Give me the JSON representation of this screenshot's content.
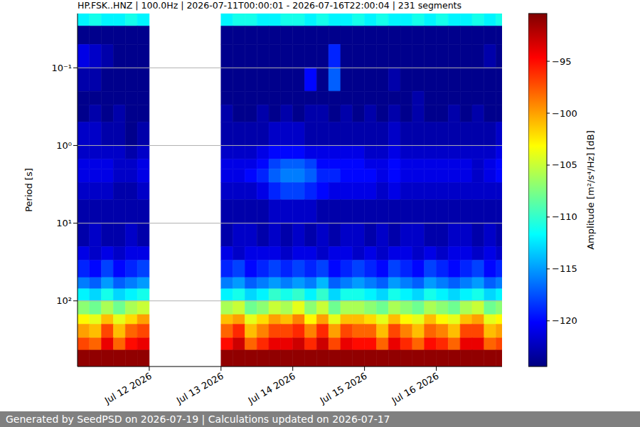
{
  "chart_data": {
    "type": "heatmap",
    "title": "HP.FSK..HNZ | 100.0Hz | 2026-07-11T00:00:01 - 2026-07-16T22:00:04 | 231 segments",
    "ylabel": "Period [s]",
    "log": "y",
    "grid": true,
    "xlim": [
      "2026-07-11T00:00:01",
      "2026-07-16T22:00:04"
    ],
    "xticks": [
      {
        "value": "2026-07-12",
        "label": "Jul 12 2026"
      },
      {
        "value": "2026-07-13",
        "label": "Jul 13 2026"
      },
      {
        "value": "2026-07-14",
        "label": "Jul 14 2026"
      },
      {
        "value": "2026-07-15",
        "label": "Jul 15 2026"
      },
      {
        "value": "2026-07-16",
        "label": "Jul 16 2026"
      }
    ],
    "ylim": [
      0.02,
      700
    ],
    "yticks": [
      {
        "value": 0.1,
        "label": "10⁻¹"
      },
      {
        "value": 1,
        "label": "10⁰"
      },
      {
        "value": 10,
        "label": "10¹"
      },
      {
        "value": 100,
        "label": "10²"
      }
    ],
    "x_edges": [
      "2026-07-11T00:00",
      "2026-07-11T04:00",
      "2026-07-11T08:00",
      "2026-07-11T12:00",
      "2026-07-11T16:00",
      "2026-07-11T20:00",
      "2026-07-12T00:00",
      "2026-07-12T04:00",
      "2026-07-12T08:00",
      "2026-07-12T12:00",
      "2026-07-12T16:00",
      "2026-07-12T20:00",
      "2026-07-13T00:00",
      "2026-07-13T04:00",
      "2026-07-13T08:00",
      "2026-07-13T12:00",
      "2026-07-13T16:00",
      "2026-07-13T20:00",
      "2026-07-14T00:00",
      "2026-07-14T04:00",
      "2026-07-14T08:00",
      "2026-07-14T12:00",
      "2026-07-14T16:00",
      "2026-07-14T20:00",
      "2026-07-15T00:00",
      "2026-07-15T04:00",
      "2026-07-15T08:00",
      "2026-07-15T12:00",
      "2026-07-15T16:00",
      "2026-07-15T20:00",
      "2026-07-16T00:00",
      "2026-07-16T04:00",
      "2026-07-16T08:00",
      "2026-07-16T12:00",
      "2026-07-16T16:00",
      "2026-07-16T20:00",
      "2026-07-16T22:00"
    ],
    "y_edges": [
      0.02,
      0.029,
      0.05,
      0.1,
      0.2,
      0.3,
      0.5,
      1,
      1.5,
      2,
      3,
      5,
      10,
      20,
      30,
      50,
      70,
      100,
      150,
      200,
      300,
      430,
      700
    ],
    "z": [
      [
        -112,
        -111,
        -112,
        -112,
        -111,
        -112,
        null,
        null,
        null,
        null,
        null,
        null,
        -112,
        -111,
        -111,
        -112,
        -112,
        -111,
        -111,
        -112,
        -111,
        -112,
        -112,
        -111,
        -112,
        -111,
        -112,
        -112,
        -111,
        -112,
        -111,
        -112,
        -112,
        -111,
        -112,
        -111
      ],
      [
        -124,
        -124,
        -124,
        -124,
        -124,
        -124,
        null,
        null,
        null,
        null,
        null,
        null,
        -124,
        -124,
        -124,
        -124,
        -124,
        -124,
        -124,
        -124,
        -124,
        -124,
        -124,
        -124,
        -124,
        -124,
        -124,
        -124,
        -124,
        -124,
        -124,
        -124,
        -124,
        -124,
        -124,
        -124
      ],
      [
        -121,
        -122,
        -123,
        -124,
        -124,
        -124,
        null,
        null,
        null,
        null,
        null,
        null,
        -124,
        -124,
        -124,
        -124,
        -124,
        -124,
        -124,
        -124,
        -124,
        -119,
        -124,
        -124,
        -124,
        -124,
        -124,
        -124,
        -124,
        -124,
        -124,
        -124,
        -124,
        -124,
        -123,
        -124
      ],
      [
        -123,
        -123,
        -124,
        -124,
        -124,
        -124,
        null,
        null,
        null,
        null,
        null,
        null,
        -124,
        -124,
        -124,
        -124,
        -124,
        -124,
        -124,
        -120,
        -124,
        -117,
        -124,
        -124,
        -124,
        -124,
        -123,
        -124,
        -124,
        -124,
        -124,
        -124,
        -124,
        -124,
        -124,
        -124
      ],
      [
        -124,
        -124,
        -124,
        -124,
        -124,
        -124,
        null,
        null,
        null,
        null,
        null,
        null,
        -124,
        -124,
        -124,
        -124,
        -124,
        -124,
        -124,
        -124,
        -124,
        -124,
        -124,
        -124,
        -124,
        -124,
        -124,
        -124,
        -123,
        -124,
        -124,
        -124,
        -124,
        -124,
        -124,
        -124
      ],
      [
        -124,
        -123,
        -124,
        -123,
        -124,
        -124,
        null,
        null,
        null,
        null,
        null,
        null,
        -123,
        -124,
        -124,
        -123,
        -124,
        -123,
        -124,
        -123,
        -123,
        -124,
        -123,
        -124,
        -123,
        -124,
        -123,
        -124,
        -123,
        -124,
        -124,
        -123,
        -124,
        -123,
        -124,
        -124
      ],
      [
        -122,
        -122,
        -123,
        -123,
        -124,
        -123,
        null,
        null,
        null,
        null,
        null,
        null,
        -123,
        -123,
        -123,
        -123,
        -122,
        -122,
        -122,
        -123,
        -123,
        -123,
        -123,
        -123,
        -123,
        -123,
        -122,
        -123,
        -123,
        -123,
        -123,
        -123,
        -123,
        -123,
        -123,
        -122
      ],
      [
        -122,
        -122,
        -122,
        -122,
        -123,
        -122,
        null,
        null,
        null,
        null,
        null,
        null,
        -122,
        -122,
        -122,
        -121,
        -120,
        -120,
        -120,
        -121,
        -121,
        -121,
        -121,
        -121,
        -122,
        -122,
        -121,
        -122,
        -122,
        -122,
        -122,
        -122,
        -122,
        -122,
        -122,
        -121
      ],
      [
        -121,
        -121,
        -121,
        -122,
        -122,
        -121,
        null,
        null,
        null,
        null,
        null,
        null,
        -121,
        -121,
        -121,
        -120,
        -118,
        -117,
        -117,
        -118,
        -120,
        -120,
        -120,
        -120,
        -121,
        -121,
        -120,
        -121,
        -121,
        -121,
        -121,
        -121,
        -121,
        -122,
        -121,
        -120
      ],
      [
        -121,
        -121,
        -121,
        -122,
        -122,
        -121,
        null,
        null,
        null,
        null,
        null,
        null,
        -121,
        -121,
        -120,
        -119,
        -117,
        -116,
        -116,
        -117,
        -119,
        -119,
        -120,
        -120,
        -120,
        -121,
        -120,
        -121,
        -121,
        -121,
        -121,
        -121,
        -121,
        -122,
        -121,
        -120
      ],
      [
        -122,
        -122,
        -122,
        -123,
        -123,
        -122,
        null,
        null,
        null,
        null,
        null,
        null,
        -122,
        -122,
        -122,
        -121,
        -119,
        -118,
        -118,
        -119,
        -120,
        -121,
        -121,
        -121,
        -121,
        -122,
        -121,
        -122,
        -122,
        -122,
        -122,
        -122,
        -122,
        -122,
        -122,
        -122
      ],
      [
        -123,
        -123,
        -123,
        -123,
        -123,
        -123,
        null,
        null,
        null,
        null,
        null,
        null,
        -123,
        -123,
        -123,
        -123,
        -122,
        -122,
        -122,
        -122,
        -123,
        -123,
        -123,
        -123,
        -123,
        -123,
        -123,
        -123,
        -123,
        -123,
        -123,
        -123,
        -123,
        -123,
        -123,
        -123
      ],
      [
        -123,
        -122,
        -123,
        -123,
        -122,
        -123,
        null,
        null,
        null,
        null,
        null,
        null,
        -123,
        -122,
        -122,
        -123,
        -122,
        -123,
        -122,
        -123,
        -122,
        -123,
        -122,
        -122,
        -123,
        -122,
        -123,
        -122,
        -122,
        -123,
        -123,
        -122,
        -122,
        -123,
        -122,
        -123
      ],
      [
        -121,
        -122,
        -121,
        -122,
        -121,
        -121,
        null,
        null,
        null,
        null,
        null,
        null,
        -121,
        -122,
        -121,
        -121,
        -121,
        -122,
        -121,
        -121,
        -122,
        -121,
        -121,
        -122,
        -121,
        -122,
        -121,
        -121,
        -122,
        -121,
        -122,
        -121,
        -121,
        -122,
        -121,
        -122
      ],
      [
        -119,
        -120,
        -118,
        -120,
        -119,
        -118,
        null,
        null,
        null,
        null,
        null,
        null,
        -119,
        -118,
        -120,
        -119,
        -118,
        -119,
        -118,
        -119,
        -118,
        -120,
        -119,
        -118,
        -119,
        -120,
        -118,
        -119,
        -120,
        -118,
        -119,
        -120,
        -119,
        -118,
        -120,
        -119
      ],
      [
        -116,
        -117,
        -115,
        -117,
        -116,
        -115,
        null,
        null,
        null,
        null,
        null,
        null,
        -116,
        -115,
        -117,
        -116,
        -115,
        -116,
        -115,
        -116,
        -114,
        -117,
        -116,
        -115,
        -116,
        -117,
        -115,
        -116,
        -117,
        -115,
        -116,
        -117,
        -116,
        -115,
        -117,
        -116
      ],
      [
        -112,
        -113,
        -111,
        -113,
        -112,
        -111,
        null,
        null,
        null,
        null,
        null,
        null,
        -112,
        -111,
        -113,
        -112,
        -110,
        -111,
        -110,
        -112,
        -110,
        -113,
        -111,
        -111,
        -112,
        -113,
        -111,
        -112,
        -113,
        -111,
        -112,
        -113,
        -112,
        -111,
        -113,
        -112
      ],
      [
        -107,
        -108,
        -106,
        -108,
        -106,
        -105,
        null,
        null,
        null,
        null,
        null,
        null,
        -106,
        -105,
        -108,
        -107,
        -105,
        -106,
        -104,
        -107,
        -105,
        -108,
        -106,
        -106,
        -107,
        -108,
        -106,
        -107,
        -108,
        -106,
        -107,
        -108,
        -106,
        -105,
        -108,
        -107
      ],
      [
        -103,
        -104,
        -101,
        -104,
        -102,
        -100,
        null,
        null,
        null,
        null,
        null,
        null,
        -101,
        -100,
        -104,
        -102,
        -100,
        -101,
        -99,
        -103,
        -100,
        -104,
        -101,
        -101,
        -102,
        -104,
        -101,
        -103,
        -104,
        -101,
        -103,
        -104,
        -101,
        -100,
        -104,
        -103
      ],
      [
        -100,
        -101,
        -97,
        -101,
        -98,
        -97,
        null,
        null,
        null,
        null,
        null,
        null,
        -98,
        -96,
        -101,
        -99,
        -97,
        -97,
        -96,
        -99,
        -96,
        -100,
        -97,
        -98,
        -98,
        -101,
        -97,
        -99,
        -101,
        -98,
        -99,
        -101,
        -97,
        -97,
        -101,
        -100
      ],
      [
        -97,
        -98,
        -94,
        -98,
        -95,
        -94,
        null,
        null,
        null,
        null,
        null,
        null,
        -95,
        -93,
        -98,
        -96,
        -94,
        -94,
        -93,
        -96,
        -93,
        -97,
        -94,
        -95,
        -95,
        -98,
        -94,
        -96,
        -98,
        -95,
        -96,
        -98,
        -94,
        -94,
        -98,
        -97
      ],
      [
        -91,
        -91,
        -91,
        -91,
        -91,
        -91,
        null,
        null,
        null,
        null,
        null,
        null,
        -91,
        -91,
        -91,
        -91,
        -91,
        -91,
        -91,
        -91,
        -91,
        -91,
        -91,
        -91,
        -91,
        -91,
        -91,
        -91,
        -91,
        -91,
        -91,
        -91,
        -91,
        -91,
        -91,
        -91
      ]
    ],
    "colorbar": {
      "range": [
        -124.4,
        -90.4
      ],
      "ticks": [
        {
          "value": -120,
          "label": "−120"
        },
        {
          "value": -115,
          "label": "−115"
        },
        {
          "value": -110,
          "label": "−110"
        },
        {
          "value": -105,
          "label": "−105"
        },
        {
          "value": -100,
          "label": "−100"
        },
        {
          "value": -95,
          "label": "−95"
        }
      ],
      "label": "Amplitude [m²/s⁴/Hz] [dB]"
    },
    "footer": "Generated by SeedPSD on 2026-07-19 | Calculations updated on 2026-07-17"
  }
}
